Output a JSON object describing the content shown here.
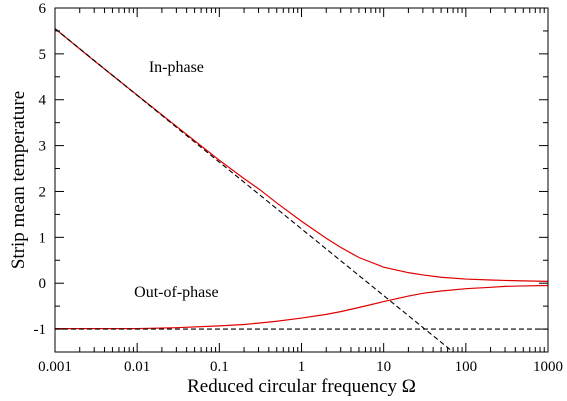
{
  "chart_data": {
    "type": "line",
    "xlabel": "Reduced circular frequency Ω",
    "ylabel": "Strip mean temperature",
    "xscale": "log",
    "xlim": [
      0.001,
      1000
    ],
    "ylim": [
      -1.5,
      6
    ],
    "xticks": [
      0.001,
      0.01,
      0.1,
      1,
      10,
      100,
      1000
    ],
    "xtick_labels": [
      "0.001",
      "0.01",
      "0.1",
      "1",
      "10",
      "100",
      "1000"
    ],
    "yticks": [
      -1,
      0,
      1,
      2,
      3,
      4,
      5,
      6
    ],
    "ytick_labels": [
      "-1",
      "0",
      "1",
      "2",
      "3",
      "4",
      "5",
      "6"
    ],
    "grid": false,
    "legend": "none",
    "annotations": [
      {
        "text": "In-phase",
        "x": 0.03,
        "y": 4.6
      },
      {
        "text": "Out-of-phase",
        "x": 0.03,
        "y": -0.3
      }
    ],
    "series": [
      {
        "color": "#e00000",
        "style": "solid",
        "x": [
          0.001,
          0.003,
          0.01,
          0.03,
          0.1,
          0.2,
          0.3,
          0.5,
          1,
          2,
          3,
          5,
          10,
          20,
          30,
          50,
          100,
          200,
          300,
          500,
          1000
        ],
        "y": [
          5.55,
          4.85,
          4.1,
          3.42,
          2.68,
          2.28,
          2.06,
          1.75,
          1.35,
          0.98,
          0.78,
          0.56,
          0.35,
          0.23,
          0.18,
          0.13,
          0.09,
          0.07,
          0.06,
          0.05,
          0.04
        ]
      },
      {
        "color": "#e00000",
        "style": "solid",
        "x": [
          0.001,
          0.01,
          0.03,
          0.1,
          0.2,
          0.3,
          0.5,
          1,
          2,
          3,
          5,
          10,
          20,
          30,
          50,
          100,
          200,
          300,
          500,
          1000
        ],
        "y": [
          -0.99,
          -0.99,
          -0.97,
          -0.93,
          -0.9,
          -0.87,
          -0.83,
          -0.76,
          -0.68,
          -0.62,
          -0.53,
          -0.4,
          -0.28,
          -0.22,
          -0.17,
          -0.12,
          -0.09,
          -0.07,
          -0.06,
          -0.05
        ]
      },
      {
        "color": "#000000",
        "style": "dashed",
        "x": [
          0.001,
          70
        ],
        "y": [
          5.55,
          -1.5
        ]
      },
      {
        "color": "#000000",
        "style": "dashed",
        "x": [
          0.001,
          1000
        ],
        "y": [
          -1,
          -1
        ]
      }
    ]
  }
}
